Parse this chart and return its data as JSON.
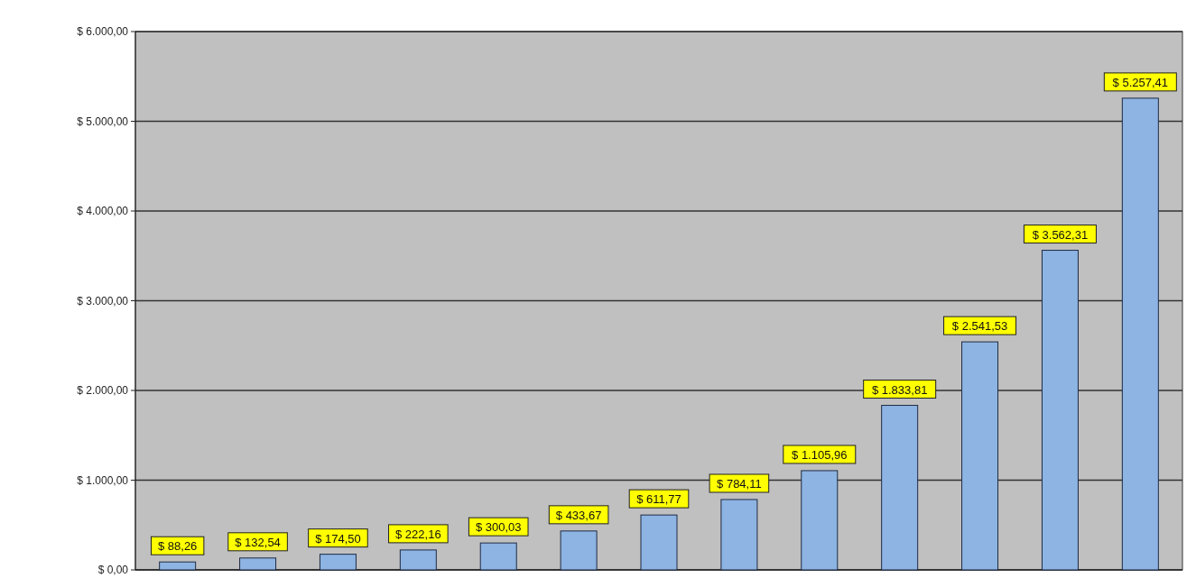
{
  "chart_data": {
    "type": "bar",
    "categories": [
      null,
      null,
      null,
      null,
      null,
      null,
      null,
      null,
      null,
      null,
      null,
      null,
      null
    ],
    "values": [
      88.26,
      132.54,
      174.5,
      222.16,
      300.03,
      433.67,
      611.77,
      784.11,
      1105.96,
      1833.81,
      2541.53,
      3562.31,
      5257.41
    ],
    "value_labels": [
      "$ 88,26",
      "$ 132,54",
      "$ 174,50",
      "$ 222,16",
      "$ 300,03",
      "$ 433,67",
      "$ 611,77",
      "$ 784,11",
      "$ 1.105,96",
      "$ 1.833,81",
      "$ 2.541,53",
      "$ 3.562,31",
      "$ 5.257,41"
    ],
    "color": "#8db4e2",
    "ylim": [
      0,
      6000
    ],
    "yticks": [
      {
        "value": 0,
        "label": "$ 0,00"
      },
      {
        "value": 1000,
        "label": "$ 1.000,00"
      },
      {
        "value": 2000,
        "label": "$ 2.000,00"
      },
      {
        "value": 3000,
        "label": "$ 3.000,00"
      },
      {
        "value": 4000,
        "label": "$ 4.000,00"
      },
      {
        "value": 5000,
        "label": "$ 5.000,00"
      },
      {
        "value": 6000,
        "label": "$ 6.000,00"
      }
    ],
    "grid": "y"
  }
}
